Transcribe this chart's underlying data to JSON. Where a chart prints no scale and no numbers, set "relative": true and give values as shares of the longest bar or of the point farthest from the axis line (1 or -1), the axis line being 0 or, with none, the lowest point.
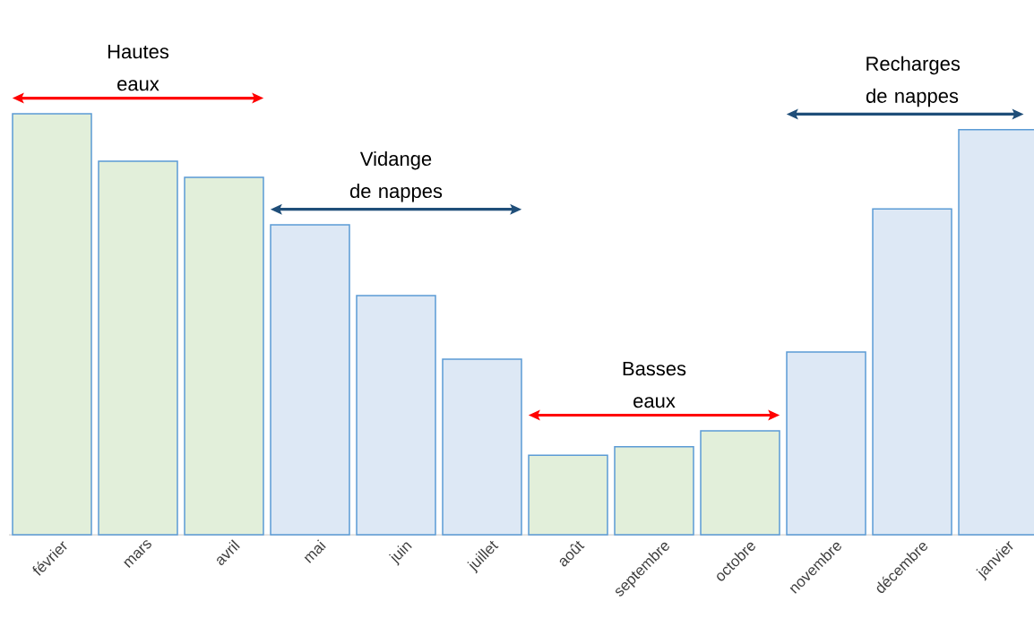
{
  "chart_data": {
    "type": "bar",
    "relative": true,
    "categories": [
      "février",
      "mars",
      "avril",
      "mai",
      "juin",
      "juillet",
      "août",
      "septembre",
      "octobre",
      "novembre",
      "décembre",
      "janvier"
    ],
    "values": [
      1,
      0.887,
      0.849,
      0.736,
      0.568,
      0.417,
      0.189,
      0.209,
      0.247,
      0.434,
      0.774,
      0.962
    ],
    "colors": [
      "#e2efda",
      "#e2efda",
      "#e2efda",
      "#dde8f5",
      "#dde8f5",
      "#dde8f5",
      "#e2efda",
      "#e2efda",
      "#e2efda",
      "#dde8f5",
      "#dde8f5",
      "#dde8f5"
    ],
    "annotations": [
      "Hautes eaux",
      "Vidange de nappes",
      "Basses eaux",
      "Recharges de nappes"
    ]
  }
}
